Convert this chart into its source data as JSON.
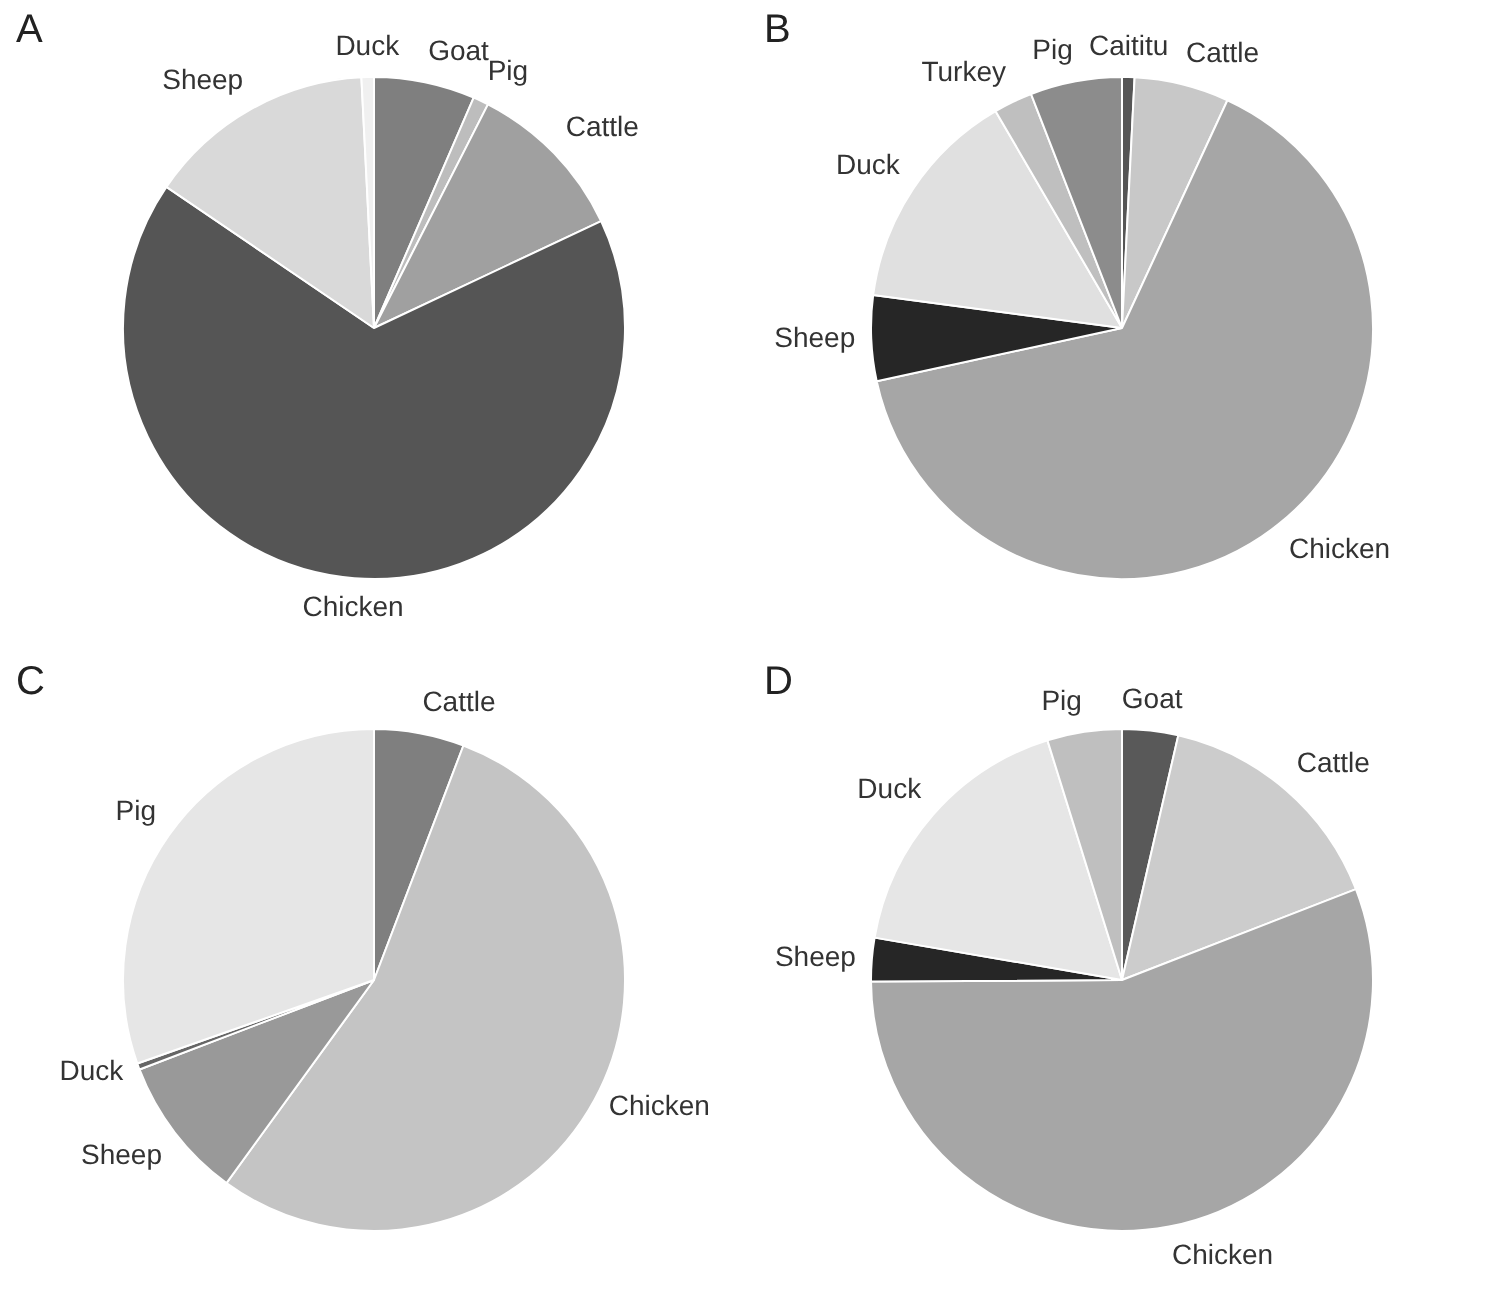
{
  "chart_data": [
    {
      "type": "pie",
      "title": "A",
      "categories": [
        "Goat",
        "Pig",
        "Cattle",
        "Chicken",
        "Sheep",
        "Duck"
      ],
      "values": [
        6.5,
        1,
        10.5,
        66.5,
        14.7,
        0.8
      ],
      "colors": [
        "#7f7f7f",
        "#bdbdbd",
        "#a0a0a0",
        "#555555",
        "#d9d9d9",
        "#f0f0f0"
      ],
      "legend": false
    },
    {
      "type": "pie",
      "title": "B",
      "categories": [
        "Caititu",
        "Cattle",
        "Chicken",
        "Sheep",
        "Duck",
        "Turkey",
        "Pig"
      ],
      "values": [
        0.8,
        6.1,
        64.7,
        5.5,
        14.5,
        2.5,
        5.9
      ],
      "colors": [
        "#555555",
        "#c8c8c8",
        "#a6a6a6",
        "#262626",
        "#e0e0e0",
        "#bfbfbf",
        "#8c8c8c"
      ],
      "legend": false
    },
    {
      "type": "pie",
      "title": "C",
      "categories": [
        "Cattle",
        "Chicken",
        "Sheep",
        "Duck",
        "Pig"
      ],
      "values": [
        5.8,
        54.2,
        9.2,
        0.4,
        30.4
      ],
      "colors": [
        "#7f7f7f",
        "#c4c4c4",
        "#999999",
        "#666666",
        "#e6e6e6"
      ],
      "legend": false
    },
    {
      "type": "pie",
      "title": "D",
      "categories": [
        "Goat",
        "Cattle",
        "Chicken",
        "Sheep",
        "Duck",
        "Pig"
      ],
      "values": [
        3.6,
        15.5,
        55.8,
        2.8,
        17.5,
        4.8
      ],
      "colors": [
        "#595959",
        "#cccccc",
        "#a6a6a6",
        "#262626",
        "#e6e6e6",
        "#bfbfbf"
      ],
      "legend": false
    }
  ]
}
